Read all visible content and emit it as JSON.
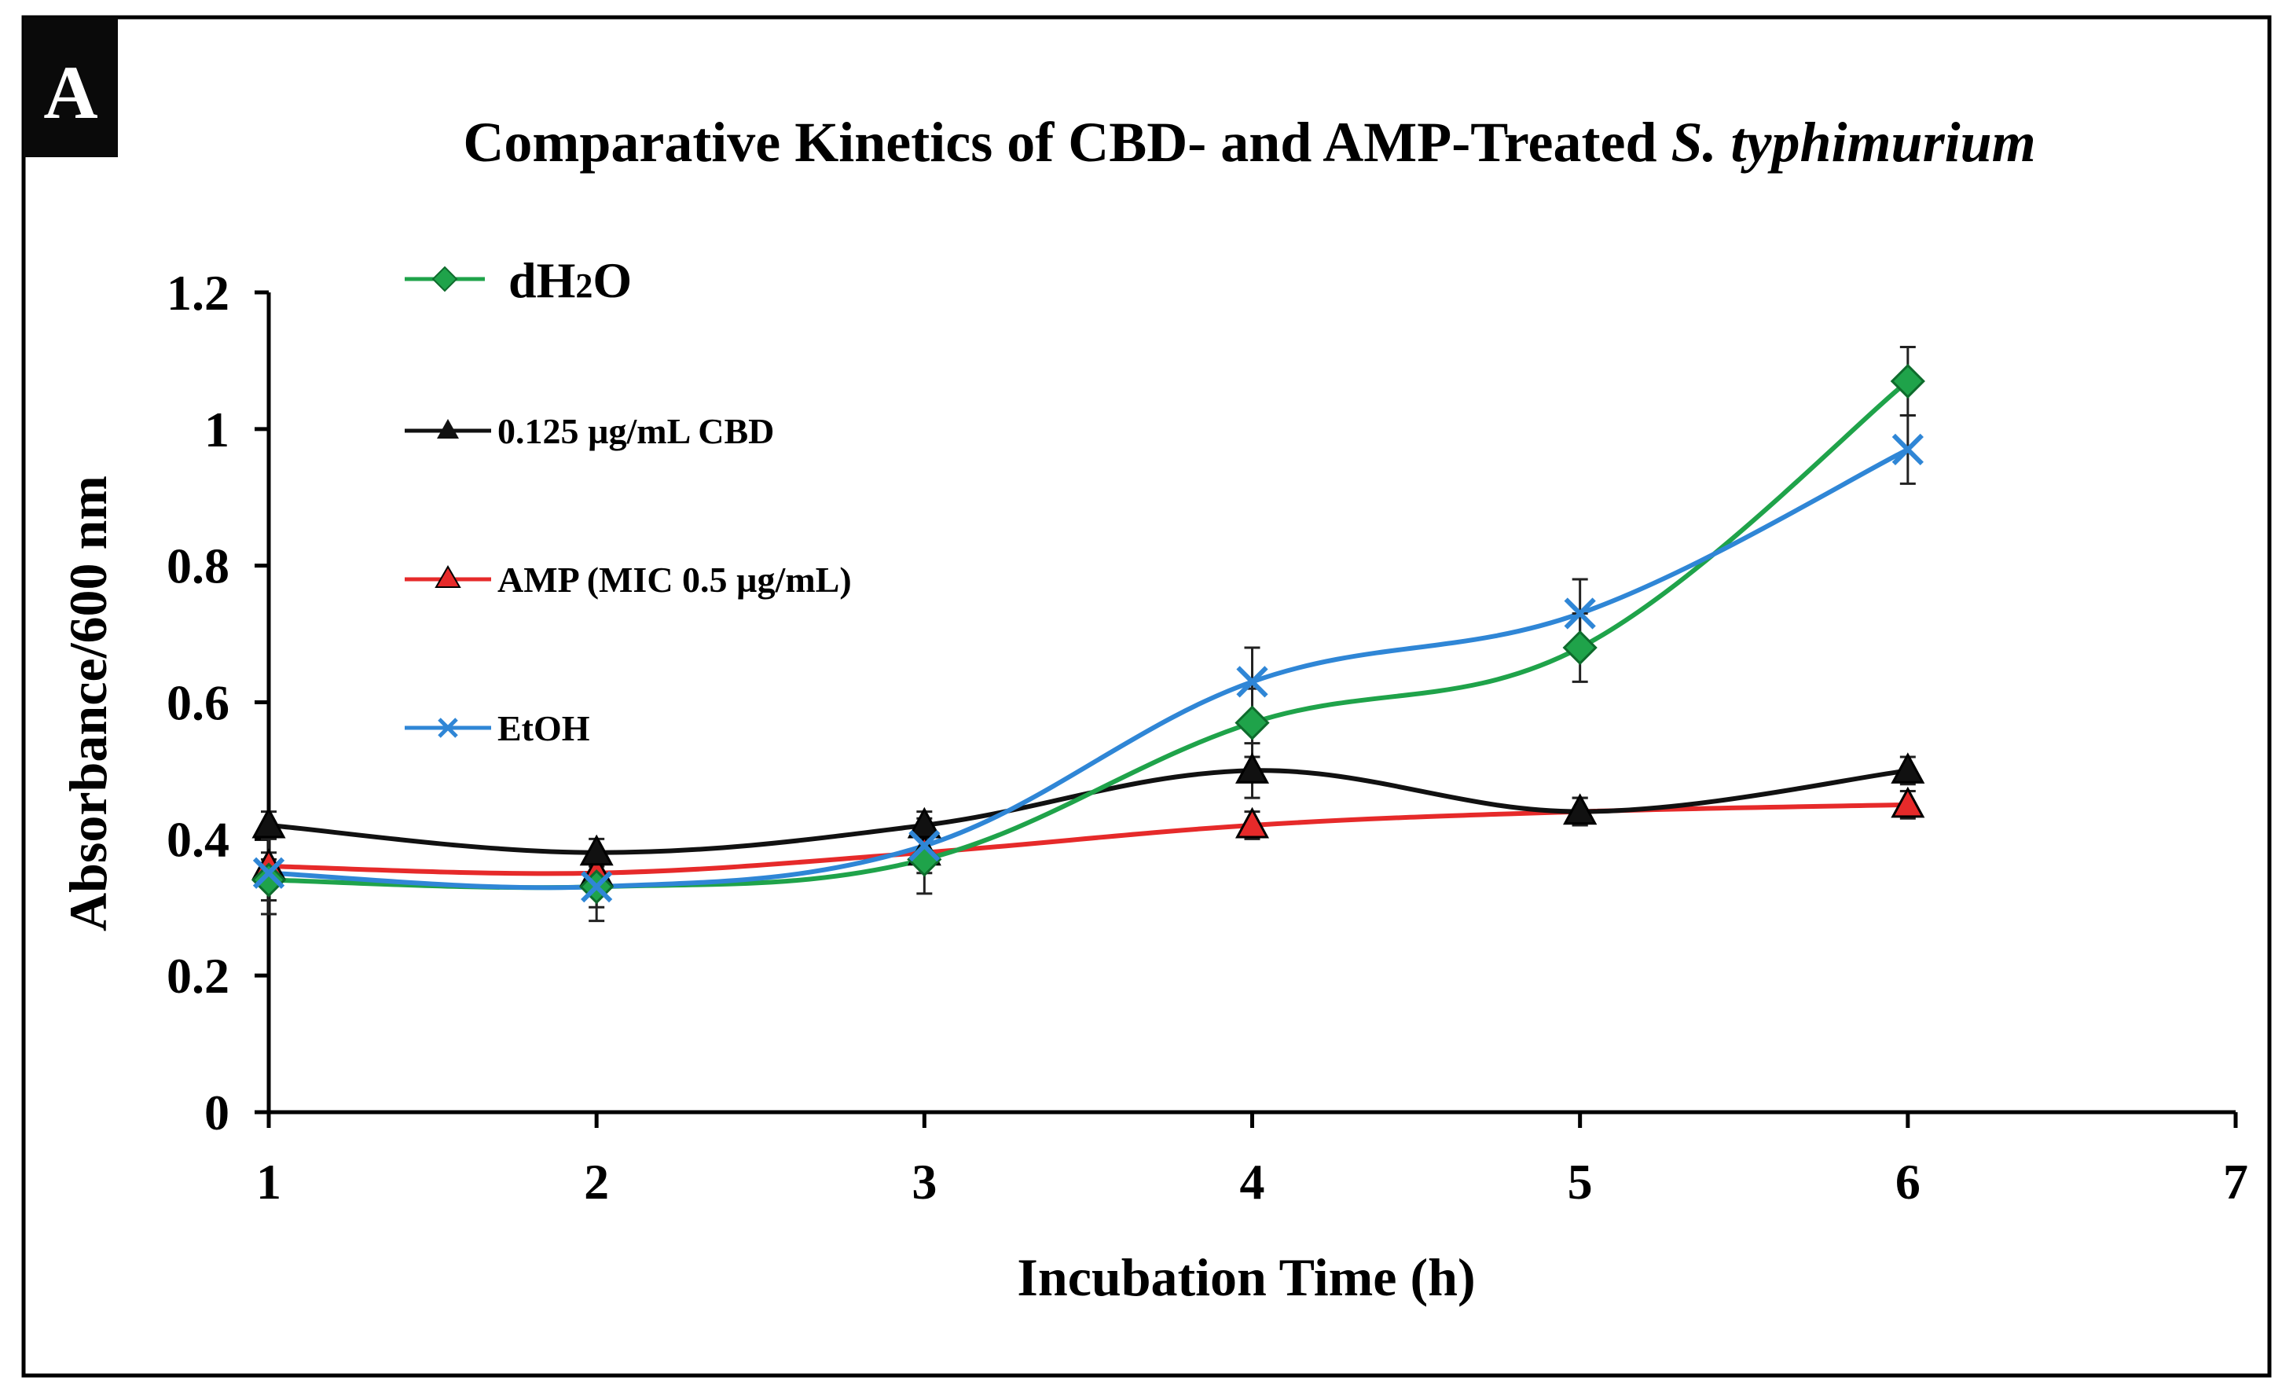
{
  "panel_label": "A",
  "chart_data": {
    "type": "line",
    "title_prefix": "Comparative Kinetics of CBD- and AMP-Treated ",
    "title_italic": "S. typhimurium",
    "xlabel": "Incubation Time (h)",
    "ylabel": "Absorbance/600 nm",
    "xlim": [
      1,
      7
    ],
    "ylim": [
      0,
      1.2
    ],
    "x_ticks": [
      "1",
      "2",
      "3",
      "4",
      "5",
      "6",
      "7"
    ],
    "y_ticks": [
      "0",
      "0.2",
      "0.4",
      "0.6",
      "0.8",
      "1",
      "1.2"
    ],
    "x": [
      1,
      2,
      3,
      4,
      5,
      6
    ],
    "series": [
      {
        "name": "dH2O",
        "legend_main": "dH",
        "legend_sub": "2",
        "legend_tail": "O",
        "color": "#1fa34a",
        "marker": "diamond",
        "values": [
          0.34,
          0.33,
          0.37,
          0.57,
          0.68,
          1.07
        ],
        "errors": [
          0.03,
          0.03,
          0.05,
          0.05,
          0.05,
          0.05
        ]
      },
      {
        "name": "0.125 µg/mL CBD",
        "color": "#111111",
        "marker": "triangle",
        "values": [
          0.42,
          0.38,
          0.42,
          0.5,
          0.44,
          0.5
        ],
        "errors": [
          0.02,
          0.02,
          0.02,
          0.04,
          0.02,
          0.02
        ]
      },
      {
        "name": "AMP (MIC 0.5 µg/mL)",
        "color": "#e62a2a",
        "marker": "triangle",
        "values": [
          0.36,
          0.35,
          0.38,
          0.42,
          0.44,
          0.45
        ],
        "errors": [
          0.02,
          0.02,
          0.02,
          0.02,
          0.02,
          0.02
        ]
      },
      {
        "name": "EtOH",
        "color": "#2f86d6",
        "marker": "x",
        "values": [
          0.35,
          0.33,
          0.39,
          0.63,
          0.73,
          0.97
        ],
        "errors": [
          0.06,
          0.05,
          0.04,
          0.05,
          0.05,
          0.05
        ]
      }
    ]
  }
}
